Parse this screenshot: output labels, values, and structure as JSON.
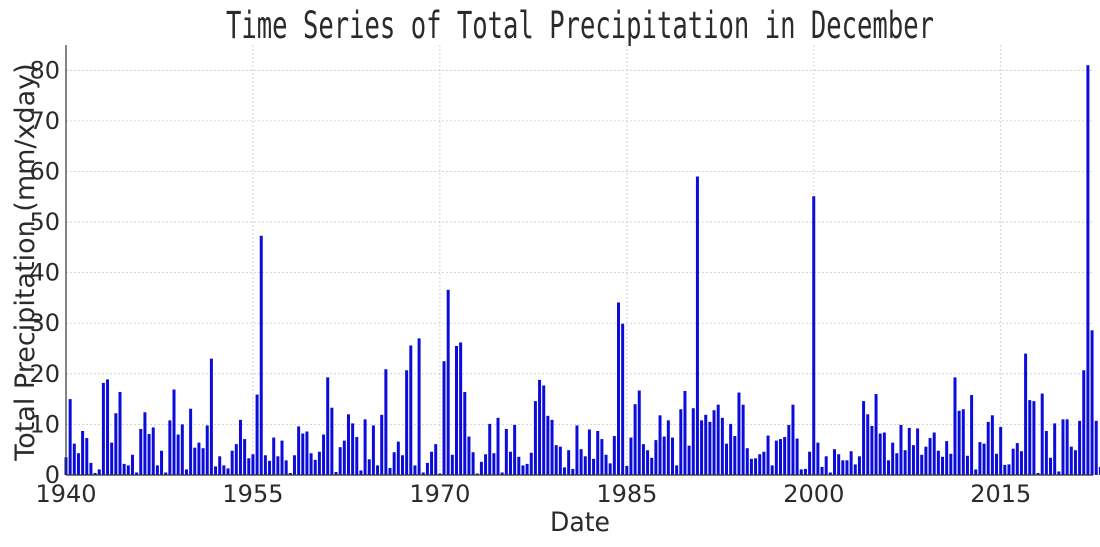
{
  "chart_data": {
    "type": "bar",
    "title": "Time Series of Total Precipitation in December",
    "xlabel": "Date",
    "ylabel": "Total Precipitation (mm/xday)",
    "xlim": [
      1940,
      2022.4
    ],
    "ylim": [
      0,
      85
    ],
    "x_ticks": [
      "1940",
      "1955",
      "1970",
      "1985",
      "2000",
      "2015"
    ],
    "y_ticks": [
      "0",
      "10",
      "20",
      "30",
      "40",
      "50",
      "60",
      "70",
      "80"
    ],
    "grid": true,
    "bar_color": "#0b0bdc",
    "x_start": 1940.0,
    "x_step": 0.3333,
    "values": [
      3.5,
      15,
      6.2,
      4.3,
      8.7,
      7.3,
      2.4,
      0.4,
      1.1,
      18.2,
      18.9,
      6.4,
      12.2,
      16.4,
      2.2,
      1.9,
      4.0,
      0.5,
      9.1,
      12.4,
      8.1,
      9.4,
      1.9,
      4.8,
      0.5,
      10.8,
      16.9,
      8.0,
      10.0,
      1.1,
      13.1,
      5.4,
      6.4,
      5.3,
      9.8,
      23.0,
      1.7,
      3.7,
      1.9,
      1.3,
      4.8,
      6.1,
      10.9,
      7.1,
      3.3,
      4.1,
      15.9,
      47.3,
      3.9,
      2.8,
      7.4,
      3.7,
      6.8,
      2.9,
      0.4,
      3.9,
      9.6,
      8.2,
      8.6,
      4.3,
      3.0,
      4.6,
      8.0,
      19.3,
      13.3,
      0.6,
      5.5,
      6.8,
      12.0,
      10.2,
      7.5,
      0.9,
      11.0,
      3.1,
      9.8,
      1.9,
      11.9,
      20.9,
      1.4,
      4.5,
      6.6,
      3.9,
      20.7,
      25.6,
      1.9,
      27.0,
      0.5,
      2.4,
      4.6,
      6.1,
      0.3,
      22.5,
      36.6,
      4.0,
      25.5,
      26.2,
      16.4,
      7.6,
      4.5,
      0.3,
      2.6,
      4.1,
      10.1,
      4.3,
      11.3,
      0.5,
      9.1,
      4.6,
      9.9,
      3.6,
      1.9,
      2.2,
      4.4,
      14.6,
      18.8,
      17.7,
      11.7,
      10.9,
      5.9,
      5.6,
      1.5,
      4.9,
      1.2,
      9.8,
      5.1,
      3.7,
      9.0,
      3.2,
      8.7,
      7.1,
      4.0,
      2.3,
      7.7,
      34.1,
      29.9,
      1.8,
      7.4,
      14.0,
      16.7,
      6.1,
      4.9,
      3.4,
      6.9,
      11.8,
      7.6,
      10.8,
      7.4,
      1.9,
      13.0,
      16.6,
      5.8,
      13.2,
      59.0,
      10.8,
      11.9,
      10.5,
      12.8,
      13.9,
      11.3,
      6.2,
      10.1,
      7.7,
      16.3,
      13.9,
      5.3,
      3.2,
      3.3,
      4.1,
      4.6,
      7.8,
      1.9,
      6.8,
      7.1,
      7.5,
      9.9,
      13.9,
      7.2,
      1.1,
      1.2,
      4.6,
      55.1,
      6.4,
      1.6,
      3.7,
      0.5,
      5.1,
      4.1,
      2.9,
      2.9,
      4.7,
      2.1,
      3.7,
      14.6,
      12.0,
      9.7,
      16.0,
      8.2,
      8.4,
      2.9,
      6.4,
      4.3,
      9.9,
      4.9,
      9.3,
      5.9,
      9.2,
      4.0,
      5.6,
      7.3,
      8.4,
      4.8,
      3.6,
      6.7,
      4.2,
      19.3,
      12.7,
      13.0,
      3.8,
      15.8,
      1.1,
      6.5,
      6.2,
      10.5,
      11.8,
      4.2,
      9.5,
      2.0,
      2.1,
      5.2,
      6.3,
      4.7,
      24.0,
      14.8,
      14.6,
      0.4,
      16.1,
      8.7,
      3.4,
      10.2,
      0.7,
      11.0,
      11.0,
      5.6,
      4.9,
      10.7,
      20.7,
      81.0,
      28.6,
      10.7,
      1.6
    ]
  }
}
